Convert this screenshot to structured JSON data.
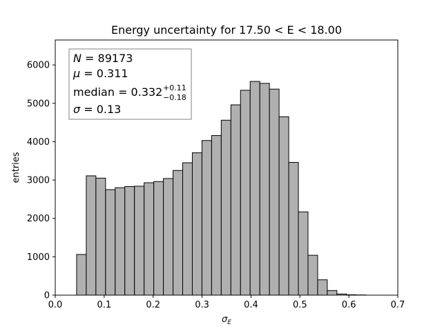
{
  "chart_data": {
    "type": "bar",
    "title": "Energy uncertainty for 17.50 < E < 18.00",
    "xlabel_main": "σ",
    "xlabel_sub": "E",
    "ylabel": "entries",
    "xlim": [
      0.0,
      0.7
    ],
    "ylim": [
      0,
      6650
    ],
    "xticks": [
      0.0,
      0.1,
      0.2,
      0.3,
      0.4,
      0.5,
      0.6,
      0.7
    ],
    "xtick_labels": [
      "0.0",
      "0.1",
      "0.2",
      "0.3",
      "0.4",
      "0.5",
      "0.6",
      "0.7"
    ],
    "yticks": [
      0,
      1000,
      2000,
      3000,
      4000,
      5000,
      6000
    ],
    "ytick_labels": [
      "0",
      "1000",
      "2000",
      "3000",
      "4000",
      "5000",
      "6000"
    ],
    "bin_edges": [
      0.0437,
      0.0634,
      0.0831,
      0.1028,
      0.1225,
      0.1422,
      0.1619,
      0.1816,
      0.2013,
      0.221,
      0.2407,
      0.2604,
      0.2801,
      0.2998,
      0.3195,
      0.3392,
      0.3589,
      0.3786,
      0.3983,
      0.418,
      0.4377,
      0.4574,
      0.4771,
      0.4968,
      0.5165,
      0.5362,
      0.5559,
      0.5756,
      0.5953,
      0.615,
      0.6347
    ],
    "values": [
      1060,
      3110,
      3050,
      2750,
      2800,
      2830,
      2840,
      2930,
      2960,
      3040,
      3250,
      3450,
      3710,
      4030,
      4160,
      4560,
      4960,
      5340,
      5570,
      5520,
      5370,
      4650,
      3460,
      2170,
      1040,
      400,
      120,
      30,
      10,
      5
    ],
    "bar_color": "#b0b0b0",
    "edge_color": "#000000",
    "legend_position": "top-left",
    "stats": {
      "n_symbol": "N",
      "n_value": " = 89173",
      "mu_symbol": "μ",
      "mu_value": " = 0.311",
      "median_label": "median = 0.332",
      "median_plus": "+0.11",
      "median_minus": "−0.18",
      "sigma_symbol": "σ",
      "sigma_value": " = 0.13"
    }
  }
}
